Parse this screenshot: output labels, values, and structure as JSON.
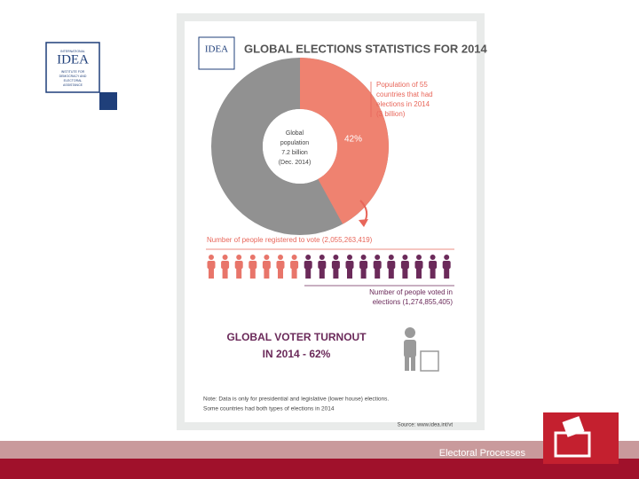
{
  "logo": {
    "name": "IDEA",
    "lines": [
      "INTERNATIONAL",
      "INSTITUTE FOR",
      "DEMOCRACY AND",
      "ELECTORAL",
      "ASSISTANCE"
    ]
  },
  "infographic": {
    "title": "GLOBAL ELECTIONS STATISTICS FOR 2014",
    "donut": {
      "value": 42,
      "label": "42%",
      "color": "#ef8270",
      "rest_color": "#919191",
      "center_lines": [
        "Global",
        "population",
        "7.2 billion",
        "(Dec. 2014)"
      ],
      "annotation_lines": [
        "Population of 55",
        "countries that had",
        "elections in 2014",
        "(3 billion)"
      ]
    },
    "registered": "Number of people registered to vote (2,055,263,419)",
    "voted_lines": [
      "Number of people voted in",
      "elections (1,274,855,405)"
    ],
    "turnout_lines": [
      "GLOBAL VOTER TURNOUT",
      "IN 2014 - 62%"
    ],
    "note_lines": [
      "Note: Data is only for presidential and legislative (lower house) elections.",
      "Some countries had both types of elections in 2014"
    ],
    "source": "Source: www.idea.int/vt"
  },
  "footer": "Electoral Processes"
}
